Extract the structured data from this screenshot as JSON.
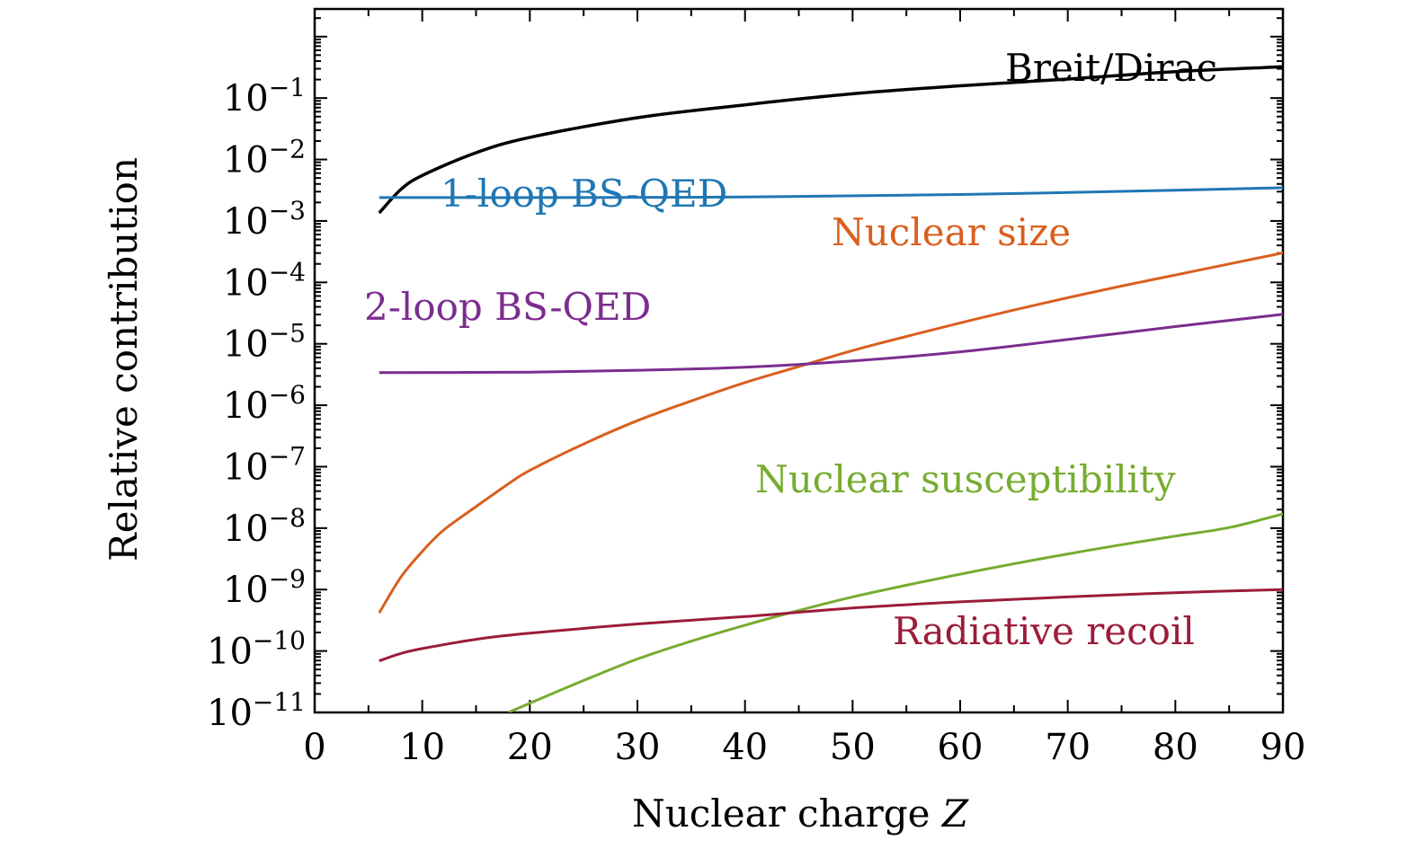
{
  "chart_data": {
    "type": "line",
    "title": "",
    "xlabel": "Nuclear charge",
    "xlabel_var": "Z",
    "ylabel": "Relative contribution",
    "xlim": [
      0,
      90
    ],
    "ylim_log10": [
      -11,
      0.45
    ],
    "y_scale": "log",
    "x_ticks": [
      0,
      10,
      20,
      30,
      40,
      50,
      60,
      70,
      80,
      90
    ],
    "y_ticks": [
      {
        "base": "10",
        "exp": "−11",
        "log": -11
      },
      {
        "base": "10",
        "exp": "−10",
        "log": -10
      },
      {
        "base": "10",
        "exp": "−9",
        "log": -9
      },
      {
        "base": "10",
        "exp": "−8",
        "log": -8
      },
      {
        "base": "10",
        "exp": "−7",
        "log": -7
      },
      {
        "base": "10",
        "exp": "−6",
        "log": -6
      },
      {
        "base": "10",
        "exp": "−5",
        "log": -5
      },
      {
        "base": "10",
        "exp": "−4",
        "log": -4
      },
      {
        "base": "10",
        "exp": "−3",
        "log": -3
      },
      {
        "base": "10",
        "exp": "−2",
        "log": -2
      },
      {
        "base": "10",
        "exp": "−1",
        "log": -1
      }
    ],
    "legend": "inline labels",
    "series": [
      {
        "name": "Breit/Dirac",
        "color": "#000000",
        "x": [
          6,
          8,
          10,
          15,
          20,
          30,
          40,
          50,
          60,
          70,
          80,
          90
        ],
        "log10_y": [
          -2.87,
          -2.49,
          -2.26,
          -1.89,
          -1.64,
          -1.32,
          -1.11,
          -0.93,
          -0.8,
          -0.69,
          -0.57,
          -0.49
        ]
      },
      {
        "name": "1-loop BS-QED",
        "color": "#1f77b4",
        "x": [
          6,
          20,
          40,
          60,
          80,
          90
        ],
        "log10_y": [
          -2.62,
          -2.62,
          -2.61,
          -2.57,
          -2.5,
          -2.46
        ]
      },
      {
        "name": "Nuclear size",
        "color": "#d95f1f",
        "x": [
          6,
          8,
          10,
          12,
          15,
          18,
          20,
          25,
          30,
          35,
          40,
          45,
          50,
          55,
          60,
          65,
          70,
          75,
          80,
          85,
          90
        ],
        "log10_y": [
          -9.38,
          -8.8,
          -8.38,
          -8.03,
          -7.65,
          -7.28,
          -7.06,
          -6.63,
          -6.25,
          -5.93,
          -5.63,
          -5.37,
          -5.11,
          -4.88,
          -4.66,
          -4.45,
          -4.25,
          -4.06,
          -3.88,
          -3.7,
          -3.52
        ]
      },
      {
        "name": "2-loop BS-QED",
        "color": "#7b2d8e",
        "x": [
          6,
          20,
          30,
          40,
          50,
          60,
          70,
          80,
          90
        ],
        "log10_y": [
          -5.47,
          -5.46,
          -5.43,
          -5.38,
          -5.28,
          -5.13,
          -4.93,
          -4.72,
          -4.52
        ]
      },
      {
        "name": "Nuclear susceptibility",
        "color": "#77ac30",
        "x": [
          18,
          20,
          25,
          30,
          35,
          40,
          45,
          50,
          55,
          60,
          65,
          70,
          75,
          80,
          85,
          90
        ],
        "log10_y": [
          -11.0,
          -10.85,
          -10.48,
          -10.13,
          -9.84,
          -9.58,
          -9.34,
          -9.12,
          -8.93,
          -8.75,
          -8.58,
          -8.42,
          -8.27,
          -8.13,
          -7.99,
          -7.77
        ]
      },
      {
        "name": "Radiative recoil",
        "color": "#9b1c3a",
        "x": [
          6,
          8,
          10,
          15,
          20,
          30,
          40,
          50,
          60,
          70,
          80,
          90
        ],
        "log10_y": [
          -10.16,
          -10.04,
          -9.96,
          -9.81,
          -9.71,
          -9.56,
          -9.44,
          -9.3,
          -9.2,
          -9.12,
          -9.05,
          -9.0
        ]
      }
    ]
  }
}
